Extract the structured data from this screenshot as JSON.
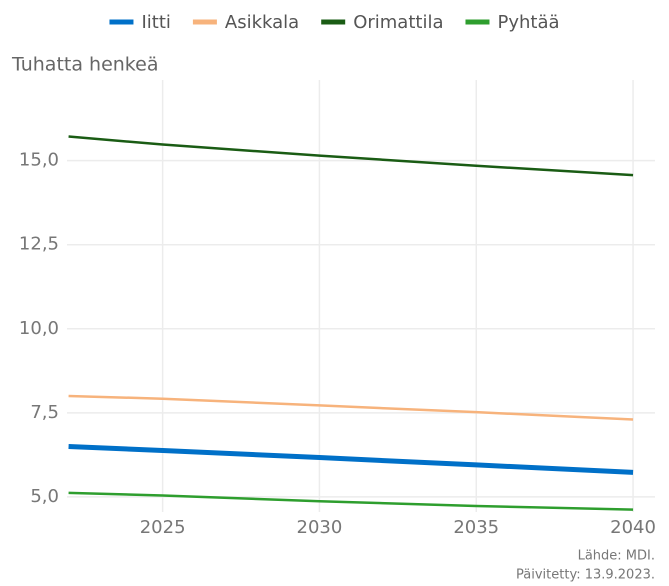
{
  "chart_data": {
    "type": "line",
    "y_label": "Tuhatta henkeä",
    "x": [
      2022,
      2025,
      2030,
      2035,
      2040
    ],
    "series": [
      {
        "name": "Iitti",
        "color": "#0070c8",
        "values": [
          6.5,
          6.38,
          6.17,
          5.95,
          5.73
        ]
      },
      {
        "name": "Asikkala",
        "color": "#f7b37c",
        "values": [
          8.0,
          7.92,
          7.72,
          7.52,
          7.3
        ]
      },
      {
        "name": "Orimattila",
        "color": "#1a5c14",
        "values": [
          15.72,
          15.48,
          15.15,
          14.85,
          14.57
        ]
      },
      {
        "name": "Pyhtää",
        "color": "#2e9e2e",
        "values": [
          5.12,
          5.04,
          4.87,
          4.73,
          4.62
        ]
      }
    ],
    "xlim": [
      2021.95,
      2040.7
    ],
    "xticks": [
      2025,
      2030,
      2035,
      2040
    ],
    "ylim": [
      4.55,
      17.4
    ],
    "yticks": [
      {
        "value": 5,
        "label": "5,0"
      },
      {
        "value": 7.5,
        "label": "7,5"
      },
      {
        "value": 10,
        "label": "10,0"
      },
      {
        "value": 12.5,
        "label": "12,5"
      },
      {
        "value": 15,
        "label": "15,0"
      }
    ],
    "grid": true,
    "legend": "top",
    "source": [
      "Lähde: MDI.",
      "Päivitetty: 13.9.2023."
    ]
  }
}
